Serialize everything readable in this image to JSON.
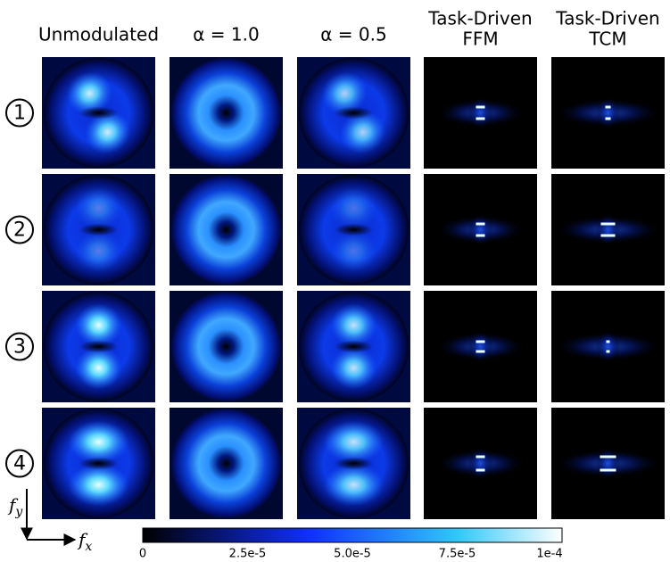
{
  "columns": [
    [
      "Unmodulated"
    ],
    [
      "α = 1.0"
    ],
    [
      "α = 0.5"
    ],
    [
      "Task-Driven",
      "FFM"
    ],
    [
      "Task-Driven",
      "TCM"
    ]
  ],
  "rows": [
    "1",
    "2",
    "3",
    "4"
  ],
  "colorbar": {
    "lim": [
      0,
      0.0001
    ],
    "ticks": [
      0,
      {
        "value": 2.5e-05,
        "label": "2.5e-5"
      },
      {
        "value": 5e-05,
        "label": "5.0e-5"
      },
      {
        "value": 7.5e-05,
        "label": "7.5e-5"
      },
      {
        "value": 0.0001,
        "label": "1e-4"
      }
    ]
  },
  "axes": {
    "vertical": {
      "symbol": "f",
      "subscript": "y"
    },
    "horizontal": {
      "symbol": "f",
      "subscript": "x"
    }
  }
}
